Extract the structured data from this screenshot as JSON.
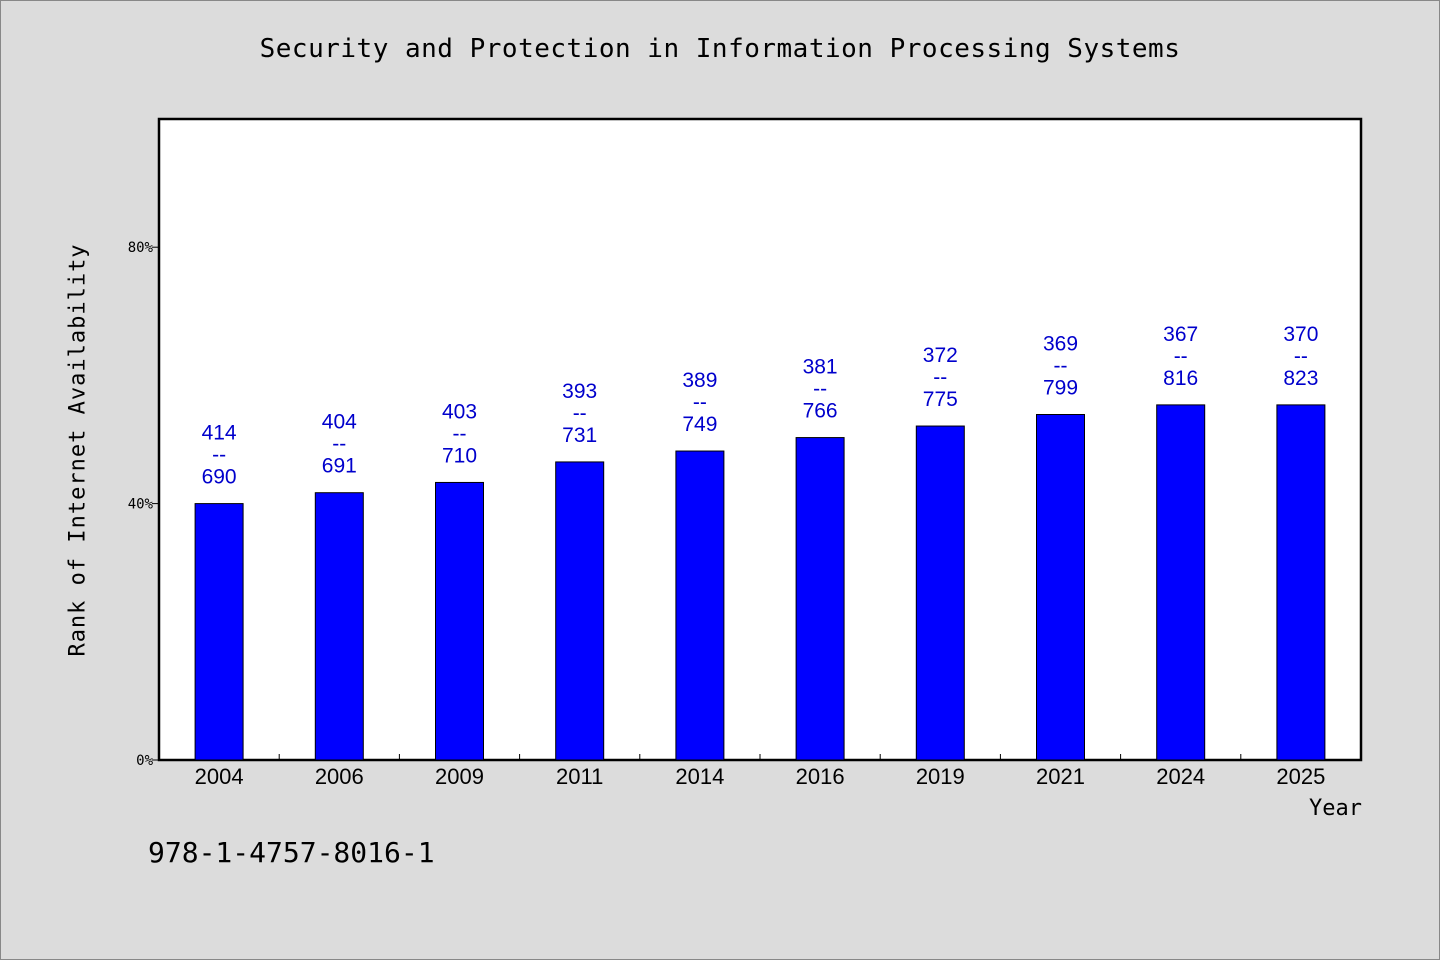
{
  "chart_data": {
    "type": "bar",
    "title": "Security and Protection in Information Processing Systems",
    "xlabel": "Year",
    "ylabel": "Rank of Internet Availability",
    "ylim": [
      0,
      100
    ],
    "yticks": [
      {
        "value": 0,
        "label": "0%"
      },
      {
        "value": 40,
        "label": "40%"
      },
      {
        "value": 80,
        "label": "80%"
      }
    ],
    "categories": [
      "2004",
      "2006",
      "2009",
      "2011",
      "2014",
      "2016",
      "2019",
      "2021",
      "2024",
      "2025"
    ],
    "values": [
      40,
      41.7,
      43.3,
      46.5,
      48.2,
      50.3,
      52.1,
      53.9,
      55.4,
      55.4
    ],
    "annotations": [
      {
        "top": "414",
        "sep": "--",
        "bottom": "690"
      },
      {
        "top": "404",
        "sep": "--",
        "bottom": "691"
      },
      {
        "top": "403",
        "sep": "--",
        "bottom": "710"
      },
      {
        "top": "393",
        "sep": "--",
        "bottom": "731"
      },
      {
        "top": "389",
        "sep": "--",
        "bottom": "749"
      },
      {
        "top": "381",
        "sep": "--",
        "bottom": "766"
      },
      {
        "top": "372",
        "sep": "--",
        "bottom": "775"
      },
      {
        "top": "369",
        "sep": "--",
        "bottom": "799"
      },
      {
        "top": "367",
        "sep": "--",
        "bottom": "816"
      },
      {
        "top": "370",
        "sep": "--",
        "bottom": "823"
      }
    ],
    "grid": false,
    "bar_color": "#0000ff",
    "label_color": "#0000cc"
  },
  "footer": {
    "isbn": "978-1-4757-8016-1"
  }
}
